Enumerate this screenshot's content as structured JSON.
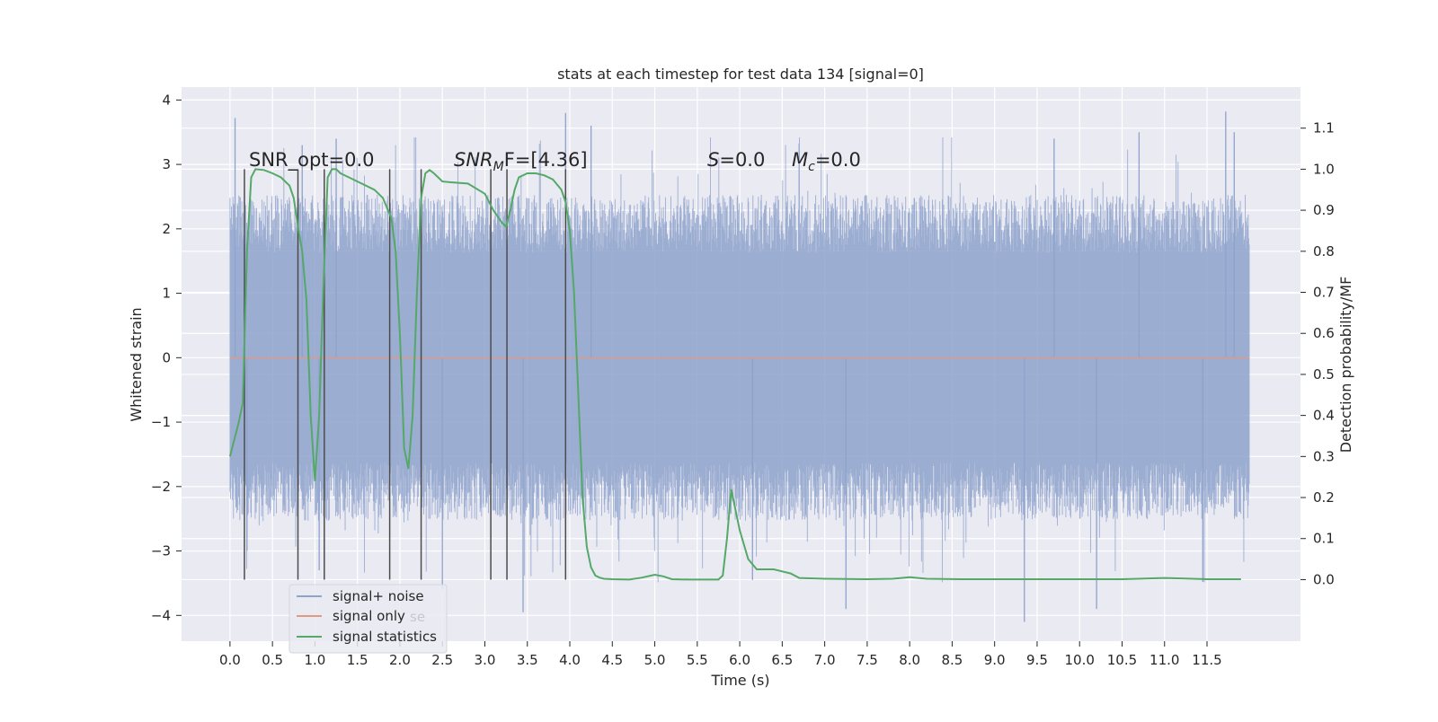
{
  "chart_data": {
    "type": "line",
    "title": "stats at each timestep for test data 134 [signal=0]",
    "xlabel": "Time (s)",
    "ylabel": "Whitened strain",
    "y2label": "Detection probability/MF",
    "xlim": [
      -0.57,
      12.6
    ],
    "ylim": [
      -4.4,
      4.2
    ],
    "y2lim": [
      -0.15,
      1.2
    ],
    "xticks": [
      "0.0",
      "0.5",
      "1.0",
      "1.5",
      "2.0",
      "2.5",
      "3.0",
      "3.5",
      "4.0",
      "4.5",
      "5.0",
      "5.5",
      "6.0",
      "6.5",
      "7.0",
      "7.5",
      "8.0",
      "8.5",
      "9.0",
      "9.5",
      "10.0",
      "10.5",
      "11.0",
      "11.5"
    ],
    "yticks": [
      "4",
      "3",
      "2",
      "1",
      "0",
      "−1",
      "−2",
      "−3",
      "−4"
    ],
    "y2ticks": [
      "1.1",
      "1.0",
      "0.9",
      "0.8",
      "0.7",
      "0.6",
      "0.5",
      "0.4",
      "0.3",
      "0.2",
      "0.1",
      "0.0"
    ],
    "grid": true,
    "legend": {
      "position": "lower-left",
      "entries": [
        {
          "label": "signal+ noise",
          "color": "#8ea2cc"
        },
        {
          "label": "signal only",
          "color": "#dd9b86"
        },
        {
          "label": "signal statistics",
          "color": "#55a868"
        }
      ],
      "ghost_text": "se"
    },
    "annotations": {
      "snr_opt": "SNR_opt=0.0",
      "snr_mf_base": "SNR",
      "snr_mf_sub": "M",
      "snr_mf_rest": "F=[4.36]",
      "s_base": "S",
      "s_rest": "=0.0",
      "mc_base": "M",
      "mc_sub": "c",
      "mc_rest": "=0.0"
    },
    "colors": {
      "background": "#eaeaf2",
      "noise": "#8ea2cc",
      "signal": "#dd9b86",
      "statistics": "#55a868",
      "markers": "#4c4c4c"
    },
    "series": [
      {
        "name": "signal+ noise",
        "x_range": [
          0.0,
          12.0
        ],
        "envelope": {
          "typical": [
            -1.9,
            1.9
          ],
          "peak_max": 3.8,
          "peak_min": -4.1
        },
        "spikes": [
          {
            "x": 0.06,
            "y": 3.72
          },
          {
            "x": 0.85,
            "y": 3.3
          },
          {
            "x": 1.25,
            "y": 3.4
          },
          {
            "x": 3.95,
            "y": 3.8
          },
          {
            "x": 4.25,
            "y": 3.6
          },
          {
            "x": 9.7,
            "y": 3.4
          },
          {
            "x": 10.7,
            "y": 3.5
          },
          {
            "x": 11.72,
            "y": 3.82
          },
          {
            "x": 11.82,
            "y": 3.5
          },
          {
            "x": 0.2,
            "y": -3.0
          },
          {
            "x": 1.05,
            "y": -3.3
          },
          {
            "x": 2.5,
            "y": -3.6
          },
          {
            "x": 3.45,
            "y": -3.95
          },
          {
            "x": 6.15,
            "y": -3.45
          },
          {
            "x": 7.25,
            "y": -3.9
          },
          {
            "x": 9.35,
            "y": -4.1
          },
          {
            "x": 10.2,
            "y": -3.9
          },
          {
            "x": 11.45,
            "y": -3.48
          }
        ]
      },
      {
        "name": "signal only",
        "x": [
          0.0,
          12.0
        ],
        "y": [
          0.0,
          0.0
        ]
      },
      {
        "name": "signal statistics",
        "x": [
          0.0,
          0.1,
          0.15,
          0.2,
          0.25,
          0.3,
          0.4,
          0.5,
          0.6,
          0.7,
          0.75,
          0.8,
          0.85,
          0.9,
          0.95,
          1.0,
          1.05,
          1.1,
          1.15,
          1.2,
          1.25,
          1.3,
          1.4,
          1.5,
          1.6,
          1.7,
          1.8,
          1.9,
          1.95,
          2.0,
          2.05,
          2.1,
          2.15,
          2.2,
          2.25,
          2.3,
          2.35,
          2.4,
          2.45,
          2.5,
          2.6,
          2.8,
          3.0,
          3.1,
          3.2,
          3.25,
          3.3,
          3.35,
          3.4,
          3.5,
          3.6,
          3.7,
          3.8,
          3.9,
          3.95,
          4.0,
          4.05,
          4.1,
          4.15,
          4.2,
          4.25,
          4.3,
          4.35,
          4.4,
          4.5,
          4.7,
          4.85,
          5.0,
          5.1,
          5.2,
          5.4,
          5.6,
          5.75,
          5.8,
          5.85,
          5.9,
          6.0,
          6.1,
          6.2,
          6.3,
          6.4,
          6.5,
          6.6,
          6.7,
          7.0,
          7.5,
          7.8,
          8.0,
          8.2,
          8.6,
          9.0,
          9.5,
          10.0,
          10.5,
          11.0,
          11.2,
          11.5,
          11.9
        ],
        "y": [
          0.3,
          0.38,
          0.43,
          0.8,
          0.98,
          1.0,
          0.998,
          0.99,
          0.98,
          0.96,
          0.93,
          0.86,
          0.8,
          0.68,
          0.4,
          0.24,
          0.4,
          0.72,
          0.98,
          1.0,
          1.0,
          0.99,
          0.98,
          0.97,
          0.96,
          0.95,
          0.93,
          0.88,
          0.8,
          0.6,
          0.32,
          0.27,
          0.4,
          0.7,
          0.93,
          0.99,
          0.998,
          0.99,
          0.98,
          0.97,
          0.968,
          0.965,
          0.94,
          0.9,
          0.87,
          0.86,
          0.9,
          0.95,
          0.98,
          0.99,
          0.99,
          0.985,
          0.975,
          0.95,
          0.92,
          0.85,
          0.7,
          0.45,
          0.2,
          0.08,
          0.03,
          0.01,
          0.005,
          0.002,
          0.001,
          0.0,
          0.005,
          0.012,
          0.008,
          0.001,
          0.0,
          0.0,
          0.0,
          0.01,
          0.1,
          0.22,
          0.12,
          0.05,
          0.025,
          0.025,
          0.025,
          0.02,
          0.015,
          0.004,
          0.002,
          0.001,
          0.002,
          0.006,
          0.002,
          0.001,
          0.001,
          0.001,
          0.001,
          0.001,
          0.004,
          0.003,
          0.001,
          0.001
        ]
      }
    ],
    "marker_lines": [
      0.17,
      0.8,
      1.11,
      1.88,
      2.25,
      3.07,
      3.26,
      3.95
    ]
  }
}
